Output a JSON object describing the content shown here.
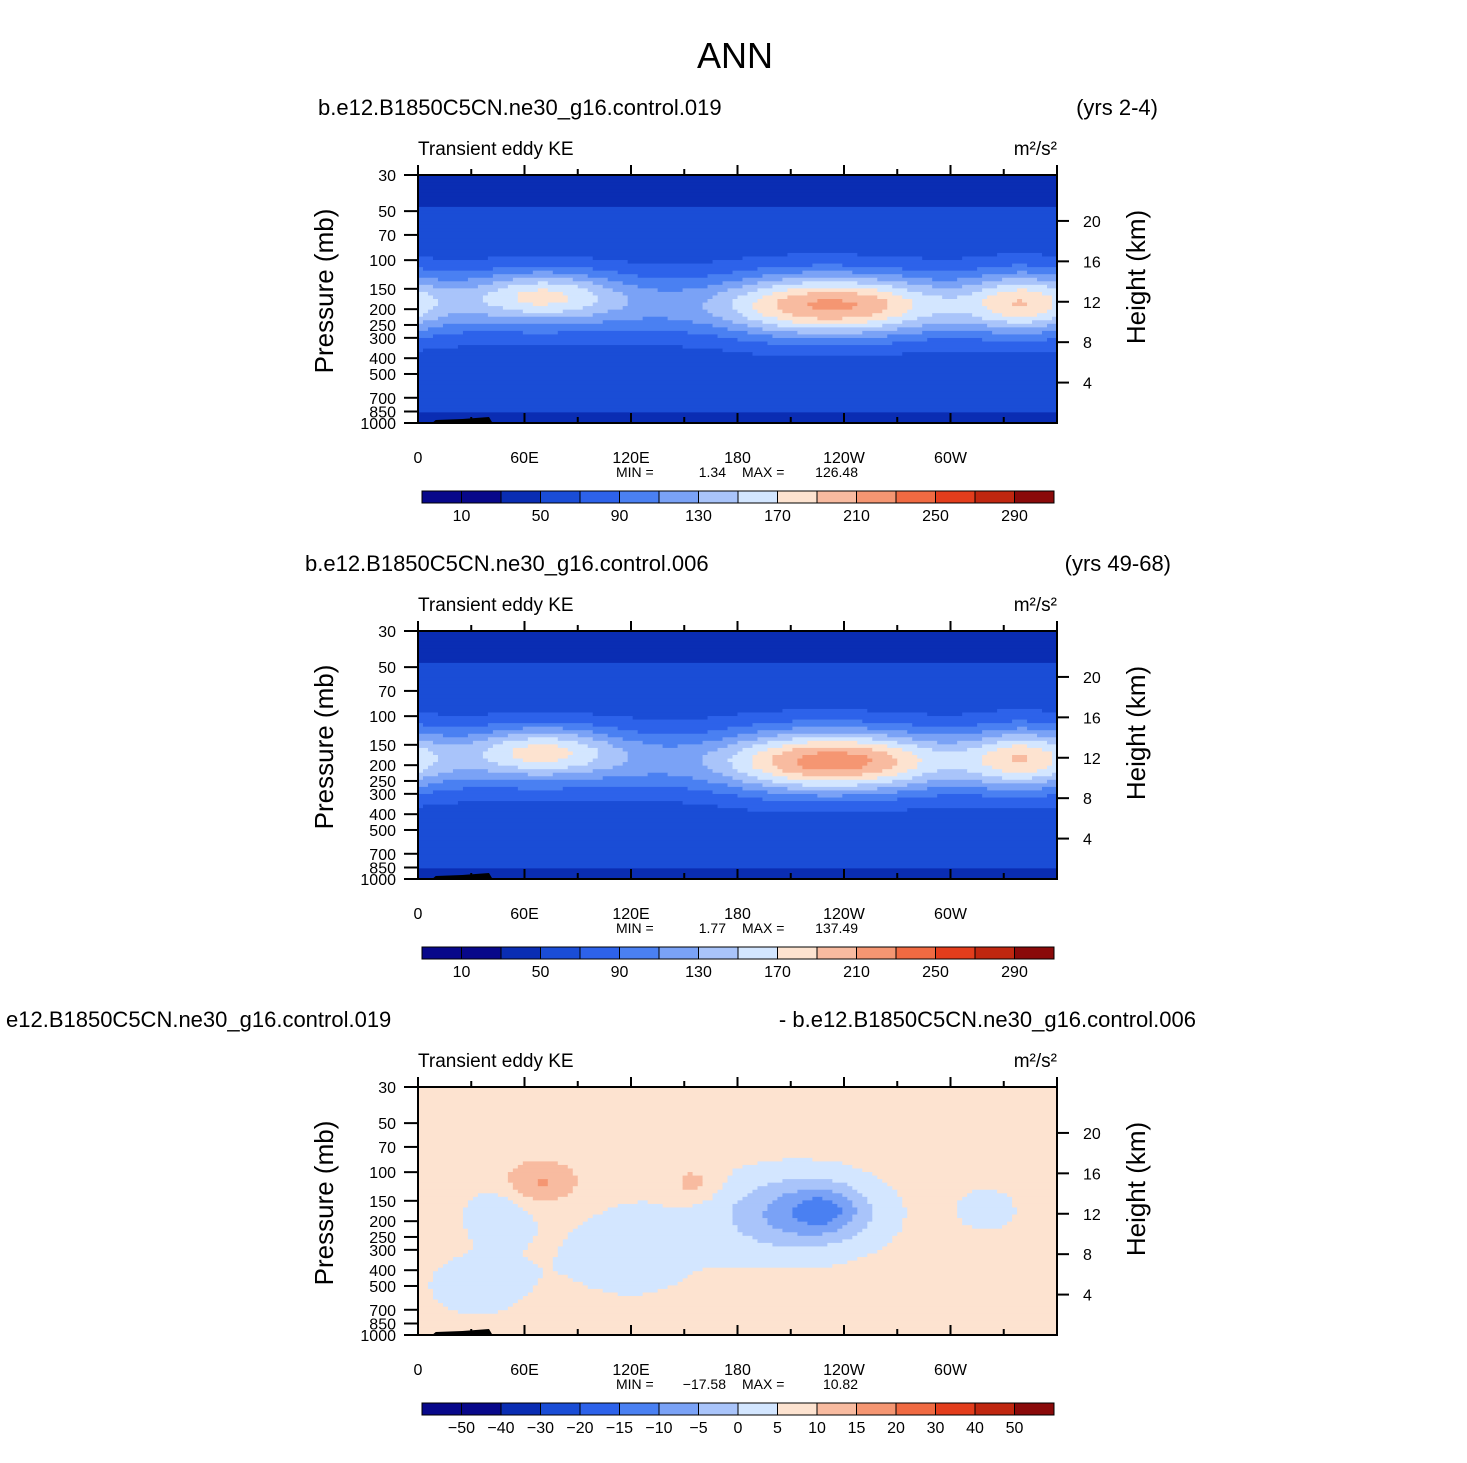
{
  "figure_title": "ANN",
  "colors": {
    "blue_cmap": [
      "#08088a",
      "#0a2db3",
      "#1a4dd6",
      "#2d62ea",
      "#4a80f2",
      "#7aa2f6",
      "#a9c4fa",
      "#d3e6ff",
      "#fde3d0",
      "#f8bba0",
      "#f59672",
      "#f06a42",
      "#e33d1c",
      "#c02710",
      "#8a0a0a"
    ],
    "plot_bg": "#0a2db3",
    "topo": "#000000"
  },
  "chart_data": [
    {
      "type": "heatmap",
      "case_left": "b.e12.B1850C5CN.ne30_g16.control.019",
      "case_right": "(yrs 2-4)",
      "left_label": "Transient eddy KE",
      "right_label": "m²/s²",
      "ylabel": "Pressure (mb)",
      "ylabel_right": "Height (km)",
      "xticks": [
        "0",
        "60E",
        "120E",
        "180",
        "120W",
        "60W"
      ],
      "yticks": [
        "30",
        "50",
        "70",
        "100",
        "150",
        "200",
        "250",
        "300",
        "400",
        "500",
        "700",
        "850",
        "1000"
      ],
      "yticks_right": [
        "20",
        "16",
        "12",
        "8",
        "4"
      ],
      "stats": {
        "min_label": "MIN =",
        "min": "1.34",
        "max_label": "MAX =",
        "max": "126.48"
      },
      "cbar_labels": [
        "10",
        "50",
        "90",
        "130",
        "170",
        "210",
        "250",
        "290"
      ],
      "levels": [
        10,
        30,
        50,
        70,
        90,
        110,
        130,
        150,
        170,
        190,
        210,
        230,
        250,
        270,
        290
      ],
      "variant": "full"
    },
    {
      "type": "heatmap",
      "case_left": "b.e12.B1850C5CN.ne30_g16.control.006",
      "case_right": "(yrs 49-68)",
      "left_label": "Transient eddy KE",
      "right_label": "m²/s²",
      "ylabel": "Pressure (mb)",
      "ylabel_right": "Height (km)",
      "xticks": [
        "0",
        "60E",
        "120E",
        "180",
        "120W",
        "60W"
      ],
      "yticks": [
        "30",
        "50",
        "70",
        "100",
        "150",
        "200",
        "250",
        "300",
        "400",
        "500",
        "700",
        "850",
        "1000"
      ],
      "yticks_right": [
        "20",
        "16",
        "12",
        "8",
        "4"
      ],
      "stats": {
        "min_label": "MIN =",
        "min": "1.77",
        "max_label": "MAX =",
        "max": "137.49"
      },
      "cbar_labels": [
        "10",
        "50",
        "90",
        "130",
        "170",
        "210",
        "250",
        "290"
      ],
      "levels": [
        10,
        30,
        50,
        70,
        90,
        110,
        130,
        150,
        170,
        190,
        210,
        230,
        250,
        270,
        290
      ],
      "variant": "full"
    },
    {
      "type": "heatmap",
      "case_left": "e12.B1850C5CN.ne30_g16.control.019",
      "case_right": "- b.e12.B1850C5CN.ne30_g16.control.006",
      "left_label": "Transient eddy KE",
      "right_label": "m²/s²",
      "ylabel": "Pressure (mb)",
      "ylabel_right": "Height (km)",
      "xticks": [
        "0",
        "60E",
        "120E",
        "180",
        "120W",
        "60W"
      ],
      "yticks": [
        "30",
        "50",
        "70",
        "100",
        "150",
        "200",
        "250",
        "300",
        "400",
        "500",
        "700",
        "850",
        "1000"
      ],
      "yticks_right": [
        "20",
        "16",
        "12",
        "8",
        "4"
      ],
      "stats": {
        "min_label": "MIN =",
        "min": "−17.58",
        "max_label": "MAX =",
        "max": "10.82"
      },
      "cbar_labels": [
        "−50",
        "−40",
        "−30",
        "−20",
        "−15",
        "−10",
        "−5",
        "0",
        "5",
        "10",
        "15",
        "20",
        "30",
        "40",
        "50"
      ],
      "levels": [
        -50,
        -40,
        -30,
        -20,
        -15,
        -10,
        -5,
        0,
        5,
        10,
        15,
        20,
        30,
        40,
        50
      ],
      "variant": "diff"
    }
  ]
}
